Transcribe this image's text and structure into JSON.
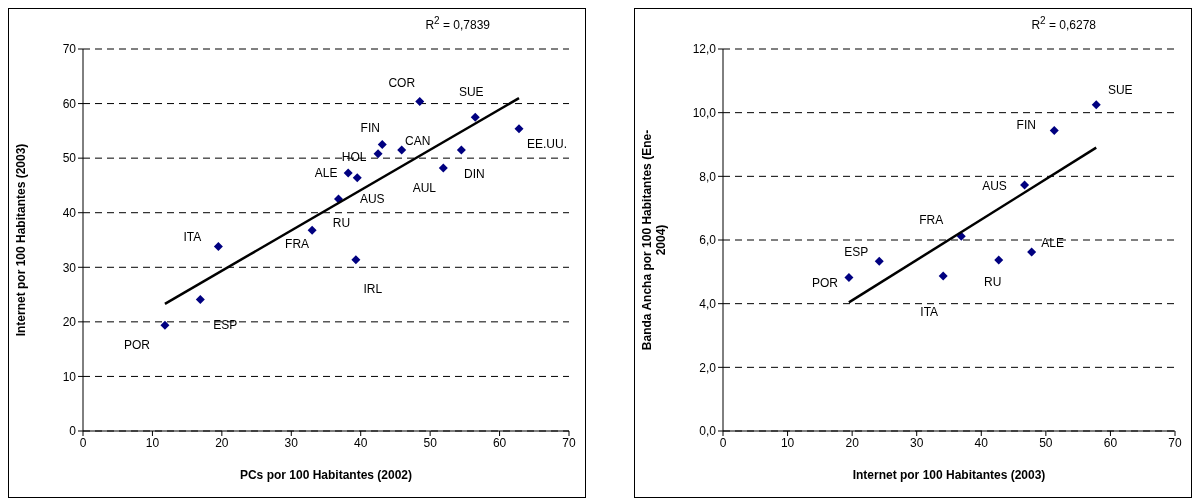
{
  "chart_data": [
    {
      "type": "scatter",
      "xlabel": "PCs por 100 Habitantes (2002)",
      "ylabel": "Internet por 100 Habitantes (2003)",
      "xlim": [
        0,
        70
      ],
      "xticks": [
        0,
        10,
        20,
        30,
        40,
        50,
        60,
        70
      ],
      "ylim": [
        0,
        70
      ],
      "yticks": [
        0,
        10,
        20,
        30,
        40,
        50,
        60,
        70
      ],
      "grid": "y",
      "series": [
        {
          "type": "scatter",
          "marker": "diamond",
          "color": "#000080",
          "x": [
            11.8,
            16.9,
            19.5,
            33.0,
            36.8,
            39.3,
            38.2,
            39.5,
            42.5,
            43.1,
            45.9,
            48.5,
            56.5,
            54.5,
            51.9,
            62.8
          ],
          "values": [
            19.4,
            24.1,
            33.8,
            36.8,
            42.5,
            31.4,
            47.3,
            46.4,
            50.8,
            52.5,
            51.5,
            60.4,
            57.5,
            51.5,
            48.2,
            55.4
          ]
        },
        {
          "type": "line",
          "marker": "none",
          "color": "#000000",
          "x": [
            11.8,
            62.8
          ],
          "values": [
            23.3,
            61.0
          ]
        }
      ],
      "annotations": [
        "R$^{2}$ = 0,7839",
        {
          "text": "POR",
          "x": 11.8,
          "y": 19.4
        },
        {
          "text": "ESP",
          "x": 16.9,
          "y": 24.1
        },
        {
          "text": "ITA",
          "x": 19.5,
          "y": 33.8
        },
        {
          "text": "FRA",
          "x": 33.0,
          "y": 36.8
        },
        {
          "text": "RU",
          "x": 36.8,
          "y": 42.5
        },
        {
          "text": "IRL",
          "x": 39.3,
          "y": 31.4
        },
        {
          "text": "ALE",
          "x": 38.2,
          "y": 47.3
        },
        {
          "text": "AUS",
          "x": 39.5,
          "y": 46.4
        },
        {
          "text": "HOL",
          "x": 42.5,
          "y": 50.8
        },
        {
          "text": "FIN",
          "x": 43.1,
          "y": 52.5
        },
        {
          "text": "CAN",
          "x": 45.9,
          "y": 51.5
        },
        {
          "text": "COR",
          "x": 48.5,
          "y": 60.4
        },
        {
          "text": "SUE",
          "x": 56.5,
          "y": 57.5
        },
        {
          "text": "DIN",
          "x": 54.5,
          "y": 51.5
        },
        {
          "text": "AUL",
          "x": 51.9,
          "y": 48.2
        },
        {
          "text": "EE.UU.",
          "x": 62.8,
          "y": 55.4
        }
      ]
    },
    {
      "type": "scatter",
      "xlabel": "Internet por 100 Habitantes (2003)",
      "ylabel": "Banda Ancha por 100 Habitantes (Ene-2004)",
      "xlim": [
        0,
        70
      ],
      "xticks": [
        0,
        10,
        20,
        30,
        40,
        50,
        60,
        70
      ],
      "ylim": [
        0,
        12
      ],
      "yticks": [
        {
          "value": 0,
          "label": "0,0"
        },
        {
          "value": 2,
          "label": "2,0"
        },
        {
          "value": 4,
          "label": "4,0"
        },
        {
          "value": 6,
          "label": "6,0"
        },
        {
          "value": 8,
          "label": "8,0"
        },
        {
          "value": 10,
          "label": "10,0"
        },
        {
          "value": 12,
          "label": "12,0"
        }
      ],
      "grid": "y",
      "series": [
        {
          "type": "scatter",
          "marker": "diamond",
          "color": "#000080",
          "x": [
            19.5,
            24.2,
            34.1,
            36.9,
            42.7,
            47.8,
            46.7,
            51.3,
            57.8
          ],
          "values": [
            4.82,
            5.33,
            4.87,
            6.12,
            5.37,
            5.62,
            7.73,
            9.44,
            10.25
          ]
        },
        {
          "type": "line",
          "marker": "none",
          "color": "#000000",
          "x": [
            19.5,
            57.8
          ],
          "values": [
            4.04,
            8.9
          ]
        }
      ],
      "annotations": [
        "R$^{2}$ = 0,6278",
        {
          "text": "POR",
          "x": 19.5,
          "y": 4.82
        },
        {
          "text": "ESP",
          "x": 24.2,
          "y": 5.33
        },
        {
          "text": "ITA",
          "x": 34.1,
          "y": 4.87
        },
        {
          "text": "FRA",
          "x": 36.9,
          "y": 6.12
        },
        {
          "text": "RU",
          "x": 42.7,
          "y": 5.37
        },
        {
          "text": "ALE",
          "x": 47.8,
          "y": 5.62
        },
        {
          "text": "AUS",
          "x": 46.7,
          "y": 7.73
        },
        {
          "text": "FIN",
          "x": 51.3,
          "y": 9.44
        },
        {
          "text": "SUE",
          "x": 57.8,
          "y": 10.25
        }
      ]
    }
  ]
}
